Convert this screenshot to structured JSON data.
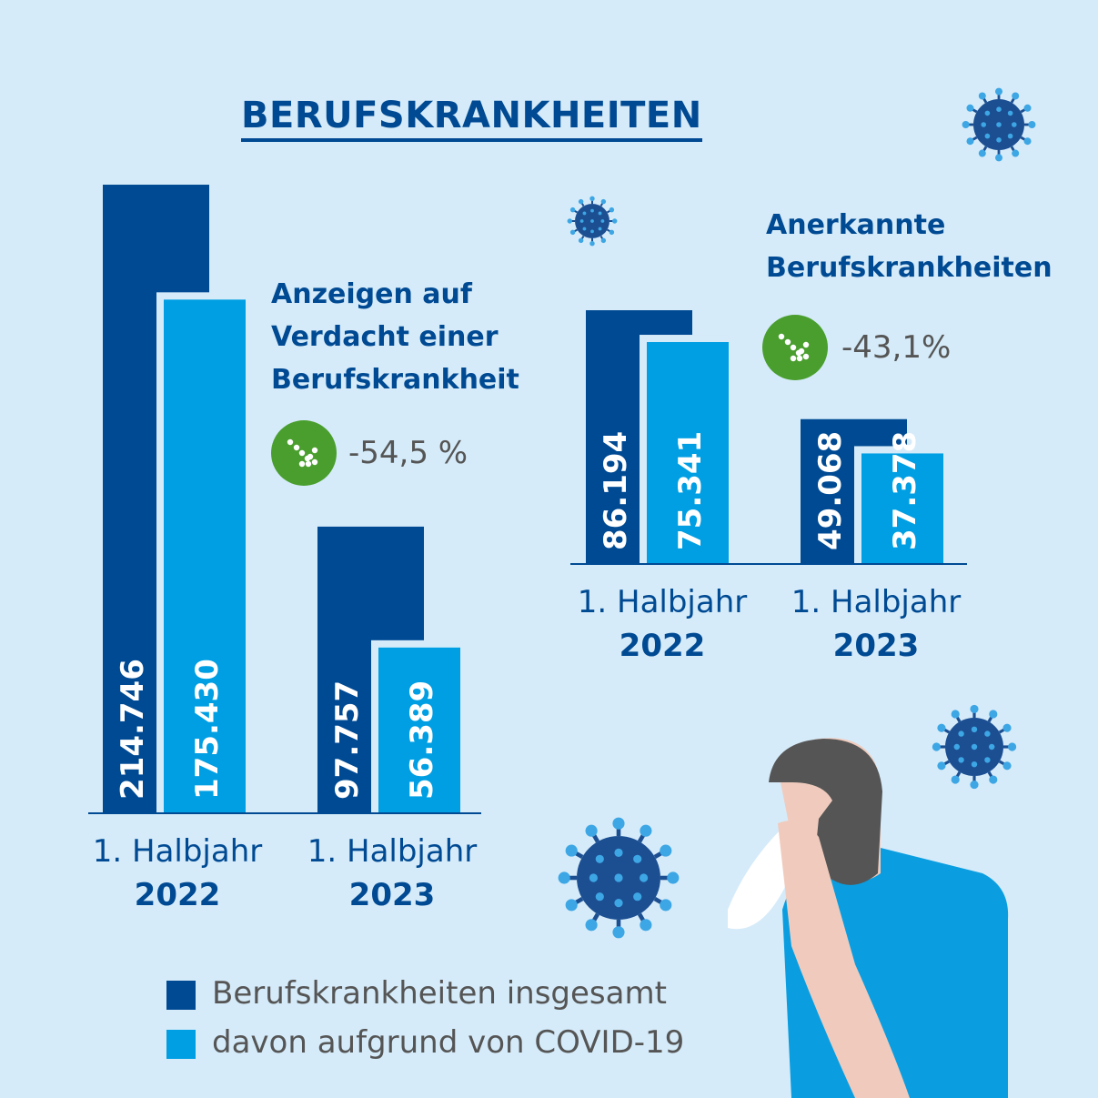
{
  "title": "BERUFSKRANKHEITEN",
  "colors": {
    "background": "#d5ebf9",
    "total": "#004a93",
    "covid": "#009fe3",
    "badge": "#4a9e2e",
    "text": "#555555"
  },
  "legend": [
    {
      "label": "Berufskrankheiten insgesamt",
      "color": "#004a93"
    },
    {
      "label": "davon aufgrund von COVID-19",
      "color": "#009fe3"
    }
  ],
  "chart_data": [
    {
      "type": "bar",
      "title": "Anzeigen auf Verdacht einer Berufskrankheit",
      "title_lines": [
        "Anzeigen auf",
        "Verdacht einer",
        "Berufskrankheit"
      ],
      "change": "-54,5 %",
      "categories": [
        "1. Halbjahr 2022",
        "1. Halbjahr 2023"
      ],
      "category_lines": [
        [
          "1. Halbjahr",
          "2022"
        ],
        [
          "1. Halbjahr",
          "2023"
        ]
      ],
      "series": [
        {
          "name": "Berufskrankheiten insgesamt",
          "values": [
            214746,
            97757
          ],
          "labels": [
            "214.746",
            "97.757"
          ]
        },
        {
          "name": "davon aufgrund von COVID-19",
          "values": [
            175430,
            56389
          ],
          "labels": [
            "175.430",
            "56.389"
          ]
        }
      ]
    },
    {
      "type": "bar",
      "title": "Anerkannte Berufskrankheiten",
      "title_lines": [
        "Anerkannte",
        "Berufskrankheiten"
      ],
      "change": "-43,1%",
      "categories": [
        "1. Halbjahr 2022",
        "1. Halbjahr 2023"
      ],
      "category_lines": [
        [
          "1. Halbjahr",
          "2022"
        ],
        [
          "1. Halbjahr",
          "2023"
        ]
      ],
      "series": [
        {
          "name": "Berufskrankheiten insgesamt",
          "values": [
            86194,
            49068
          ],
          "labels": [
            "86.194",
            "49.068"
          ]
        },
        {
          "name": "davon aufgrund von COVID-19",
          "values": [
            75341,
            37378
          ],
          "labels": [
            "75.341",
            "37.378"
          ]
        }
      ]
    }
  ]
}
